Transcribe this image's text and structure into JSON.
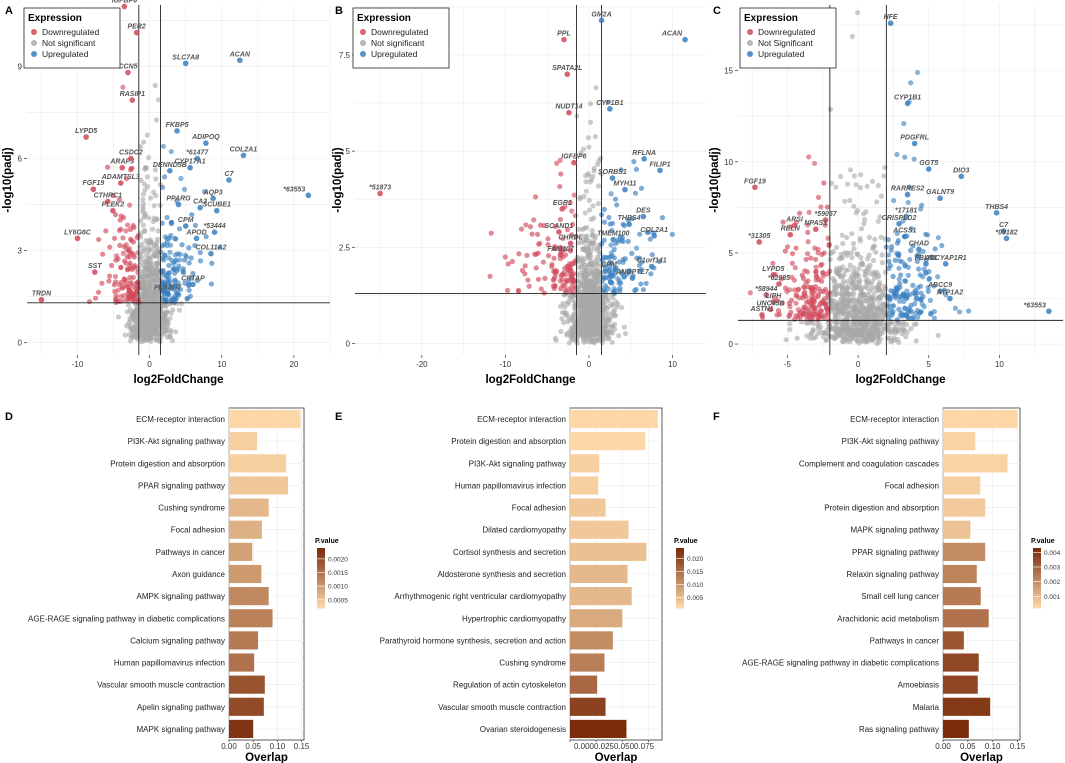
{
  "chart_data": [
    {
      "id": "A",
      "type": "scatter",
      "panel_label": "A",
      "xlabel": "log2FoldChange",
      "ylabel": "-log10(padj)",
      "xlim": [
        -17,
        25
      ],
      "ylim": [
        -0.4,
        11
      ],
      "xticks": [
        -10,
        0,
        10,
        20
      ],
      "yticks": [
        0,
        3,
        6,
        9
      ],
      "fc_cutoff": 1.5,
      "padj_line": 1.3,
      "legend": {
        "title": "Expression",
        "items": [
          "Downregulated",
          "Not significant",
          "Upregulated"
        ],
        "position": "top-left"
      },
      "cloud_seed": 11,
      "genes": [
        {
          "label": "IGFBP6",
          "x": -3.5,
          "y": 10.95,
          "status": "down"
        },
        {
          "label": "PER2",
          "x": -1.8,
          "y": 10.1,
          "status": "down"
        },
        {
          "label": "CCN5",
          "x": -3.0,
          "y": 8.8,
          "status": "down"
        },
        {
          "label": "RASIP1",
          "x": -2.4,
          "y": 7.9,
          "status": "down"
        },
        {
          "label": "LYPD5",
          "x": -8.8,
          "y": 6.7,
          "status": "down"
        },
        {
          "label": "SLC7A8",
          "x": 5.0,
          "y": 9.1,
          "status": "up"
        },
        {
          "label": "ACAN",
          "x": 12.5,
          "y": 9.2,
          "status": "up"
        },
        {
          "label": "FKBP5",
          "x": 3.8,
          "y": 6.9,
          "status": "up"
        },
        {
          "label": "ADIPOQ",
          "x": 7.8,
          "y": 6.5,
          "status": "up"
        },
        {
          "label": "COL2A1",
          "x": 13.0,
          "y": 6.1,
          "status": "up"
        },
        {
          "label": "*61477",
          "x": 6.6,
          "y": 6.0,
          "status": "up"
        },
        {
          "label": "CYP17A1",
          "x": 5.6,
          "y": 5.7,
          "status": "up"
        },
        {
          "label": "C7",
          "x": 11.0,
          "y": 5.3,
          "status": "up"
        },
        {
          "label": "*63553",
          "x": 22.0,
          "y": 4.8,
          "status": "up"
        },
        {
          "label": "AQP3",
          "x": 8.8,
          "y": 4.7,
          "status": "up"
        },
        {
          "label": "CA3",
          "x": 7.0,
          "y": 4.4,
          "status": "up"
        },
        {
          "label": "SCUBE1",
          "x": 9.3,
          "y": 4.3,
          "status": "up"
        },
        {
          "label": "PPARG",
          "x": 4.0,
          "y": 4.5,
          "status": "up"
        },
        {
          "label": "DENND5B",
          "x": 2.8,
          "y": 5.6,
          "status": "up"
        },
        {
          "label": "APOD",
          "x": 6.5,
          "y": 3.4,
          "status": "up"
        },
        {
          "label": "*53444",
          "x": 9.0,
          "y": 3.6,
          "status": "up"
        },
        {
          "label": "COL11A2",
          "x": 8.5,
          "y": 2.9,
          "status": "up"
        },
        {
          "label": "CPM",
          "x": 5.0,
          "y": 3.8,
          "status": "up"
        },
        {
          "label": "PLA2G7",
          "x": 2.5,
          "y": 1.6,
          "status": "up"
        },
        {
          "label": "CRTAP",
          "x": 6.0,
          "y": 1.9,
          "status": "up"
        },
        {
          "label": "ARAP3",
          "x": -3.8,
          "y": 5.7,
          "status": "down"
        },
        {
          "label": "CSDC2",
          "x": -2.6,
          "y": 6.0,
          "status": "down"
        },
        {
          "label": "ADAMTSL3",
          "x": -4.0,
          "y": 5.2,
          "status": "down"
        },
        {
          "label": "FGF19",
          "x": -7.8,
          "y": 5.0,
          "status": "down"
        },
        {
          "label": "CTHRC1",
          "x": -5.8,
          "y": 4.6,
          "status": "down"
        },
        {
          "label": "PLEK2",
          "x": -5.1,
          "y": 4.3,
          "status": "down"
        },
        {
          "label": "LY6G6C",
          "x": -10.0,
          "y": 3.4,
          "status": "down"
        },
        {
          "label": "SST",
          "x": -7.6,
          "y": 2.3,
          "status": "down"
        },
        {
          "label": "TRDN",
          "x": -15.0,
          "y": 1.4,
          "status": "down"
        }
      ]
    },
    {
      "id": "B",
      "type": "scatter",
      "panel_label": "B",
      "xlabel": "log2FoldChange",
      "ylabel": "-log10(padj)",
      "xlim": [
        -28,
        14
      ],
      "ylim": [
        -0.3,
        8.8
      ],
      "xticks": [
        -20,
        -10,
        0,
        10
      ],
      "yticks": [
        0.0,
        2.5,
        5.0,
        7.5
      ],
      "fc_cutoff": 1.5,
      "padj_line": 1.3,
      "legend": {
        "title": "Expression",
        "items": [
          "Downregulated",
          "Not significant",
          "Upregulated"
        ],
        "position": "top-left"
      },
      "cloud_seed": 23,
      "genes": [
        {
          "label": "GM2A",
          "x": 1.5,
          "y": 8.4,
          "status": "up"
        },
        {
          "label": "ACAN",
          "x": 11.5,
          "y": 7.9,
          "status": "up"
        },
        {
          "label": "PPL",
          "x": -3.0,
          "y": 7.9,
          "status": "down"
        },
        {
          "label": "SPATA2L",
          "x": -2.6,
          "y": 7.0,
          "status": "down"
        },
        {
          "label": "NUDT14",
          "x": -2.4,
          "y": 6.0,
          "status": "down"
        },
        {
          "label": "CYP1B1",
          "x": 2.5,
          "y": 6.1,
          "status": "up"
        },
        {
          "label": "RFLNA",
          "x": 6.6,
          "y": 4.8,
          "status": "up"
        },
        {
          "label": "FILIP1",
          "x": 8.5,
          "y": 4.5,
          "status": "up"
        },
        {
          "label": "IGFBP6",
          "x": -1.8,
          "y": 4.7,
          "status": "down"
        },
        {
          "label": "SORBS1",
          "x": 2.8,
          "y": 4.3,
          "status": "up"
        },
        {
          "label": "MYH11",
          "x": 4.3,
          "y": 4.0,
          "status": "up"
        },
        {
          "label": "*51873",
          "x": -25.0,
          "y": 3.9,
          "status": "down"
        },
        {
          "label": "EGR1",
          "x": -3.2,
          "y": 3.5,
          "status": "down"
        },
        {
          "label": "DES",
          "x": 6.5,
          "y": 3.3,
          "status": "up"
        },
        {
          "label": "COL2A1",
          "x": 7.8,
          "y": 2.8,
          "status": "up"
        },
        {
          "label": "THBS4",
          "x": 4.8,
          "y": 3.1,
          "status": "up"
        },
        {
          "label": "C1orf141",
          "x": 7.5,
          "y": 2.0,
          "status": "up"
        },
        {
          "label": "ANGPTL7",
          "x": 5.2,
          "y": 1.7,
          "status": "up"
        },
        {
          "label": "SCAND1",
          "x": -3.6,
          "y": 2.9,
          "status": "down"
        },
        {
          "label": "FAM107",
          "x": -3.4,
          "y": 2.3,
          "status": "down"
        },
        {
          "label": "CHRDL",
          "x": -2.2,
          "y": 2.6,
          "status": "down"
        },
        {
          "label": "CPM",
          "x": 2.4,
          "y": 1.9,
          "status": "up"
        },
        {
          "label": "TMEM100",
          "x": 2.9,
          "y": 2.7,
          "status": "up"
        }
      ]
    },
    {
      "id": "C",
      "type": "scatter",
      "panel_label": "C",
      "xlabel": "log2FoldChange",
      "ylabel": "-log10(padj)",
      "xlim": [
        -8.5,
        14.5
      ],
      "ylim": [
        -0.6,
        18.6
      ],
      "xticks": [
        -5,
        0,
        5,
        10
      ],
      "yticks": [
        0,
        5,
        10,
        15
      ],
      "fc_cutoff": 2,
      "padj_line": 1.3,
      "legend": {
        "title": "Expression",
        "items": [
          "Downregulated",
          "Not Significant",
          "Upregulated"
        ],
        "position": "top-left"
      },
      "cloud_seed": 37,
      "genes": [
        {
          "label": "HFE",
          "x": 2.3,
          "y": 17.6,
          "status": "up"
        },
        {
          "label": "CYP1B1",
          "x": 3.5,
          "y": 13.2,
          "status": "up"
        },
        {
          "label": "PDGFRL",
          "x": 4.0,
          "y": 11.0,
          "status": "up"
        },
        {
          "label": "GGT5",
          "x": 5.0,
          "y": 9.6,
          "status": "up"
        },
        {
          "label": "DIO3",
          "x": 7.3,
          "y": 9.2,
          "status": "up"
        },
        {
          "label": "FGF19",
          "x": -7.3,
          "y": 8.6,
          "status": "down"
        },
        {
          "label": "RARRES2",
          "x": 3.5,
          "y": 8.2,
          "status": "up"
        },
        {
          "label": "GALNT9",
          "x": 5.8,
          "y": 8.0,
          "status": "up"
        },
        {
          "label": "THBS4",
          "x": 9.8,
          "y": 7.2,
          "status": "up"
        },
        {
          "label": "*17181",
          "x": 3.4,
          "y": 7.0,
          "status": "up"
        },
        {
          "label": "CRISPLD2",
          "x": 2.9,
          "y": 6.6,
          "status": "up"
        },
        {
          "label": "*59057",
          "x": -2.3,
          "y": 6.8,
          "status": "down"
        },
        {
          "label": "ARSI",
          "x": -4.5,
          "y": 6.5,
          "status": "down"
        },
        {
          "label": "NPAS1",
          "x": -3.0,
          "y": 6.3,
          "status": "down"
        },
        {
          "label": "C7",
          "x": 10.3,
          "y": 6.2,
          "status": "up"
        },
        {
          "label": "*09182",
          "x": 10.5,
          "y": 5.8,
          "status": "up"
        },
        {
          "label": "RELN",
          "x": -4.8,
          "y": 6.0,
          "status": "down"
        },
        {
          "label": "*31305",
          "x": -7.0,
          "y": 5.6,
          "status": "down"
        },
        {
          "label": "ACSS1",
          "x": 3.3,
          "y": 5.9,
          "status": "up"
        },
        {
          "label": "CHAD",
          "x": 4.3,
          "y": 5.2,
          "status": "up"
        },
        {
          "label": "ADCYAP1R1",
          "x": 6.2,
          "y": 4.4,
          "status": "up"
        },
        {
          "label": "LYPD5",
          "x": -6.0,
          "y": 3.8,
          "status": "down"
        },
        {
          "label": "*62085",
          "x": -5.6,
          "y": 3.3,
          "status": "down"
        },
        {
          "label": "ABCC9",
          "x": 5.8,
          "y": 2.9,
          "status": "up"
        },
        {
          "label": "ATP1A2",
          "x": 6.5,
          "y": 2.5,
          "status": "up"
        },
        {
          "label": "*58944",
          "x": -6.5,
          "y": 2.7,
          "status": "down"
        },
        {
          "label": "LIPH",
          "x": -6.0,
          "y": 2.3,
          "status": "down"
        },
        {
          "label": "UNC45B",
          "x": -6.2,
          "y": 1.9,
          "status": "down"
        },
        {
          "label": "ASTN1",
          "x": -6.8,
          "y": 1.6,
          "status": "down"
        },
        {
          "label": "*63553",
          "x": 13.5,
          "y": 1.8,
          "status": "up"
        },
        {
          "label": "FBLN1",
          "x": 4.8,
          "y": 4.4,
          "status": "up"
        }
      ]
    },
    {
      "id": "D",
      "type": "bar",
      "panel_label": "D",
      "orientation": "horizontal",
      "xlabel": "Overlap",
      "xlim": [
        0,
        0.155
      ],
      "xticks": [
        0.0,
        0.05,
        0.1,
        0.15
      ],
      "xtick_labels": [
        "0.00",
        "0.05",
        "0.10",
        "0.15"
      ],
      "legend": {
        "title": "P.value",
        "ticks": [
          "0.0020",
          "0.0015",
          "0.0010",
          "0.0005"
        ],
        "range": [
          0.0002,
          0.0024
        ]
      },
      "categories": [
        "ECM-receptor interaction",
        "PI3K-Akt signaling pathway",
        "Protein digestion and absorption",
        "PPAR signaling pathway",
        "Cushing syndrome",
        "Focal adhesion",
        "Pathways in cancer",
        "Axon guidance",
        "AMPK signaling pathway",
        "AGE-RAGE signaling pathway in diabetic complications",
        "Calcium signaling pathway",
        "Human papillomavirus infection",
        "Vascular smooth muscle contraction",
        "Apelin signaling pathway",
        "MAPK signaling pathway"
      ],
      "values": [
        0.148,
        0.058,
        0.118,
        0.122,
        0.082,
        0.068,
        0.048,
        0.067,
        0.082,
        0.09,
        0.06,
        0.052,
        0.074,
        0.072,
        0.05
      ],
      "pvalues": [
        0.0002,
        0.0003,
        0.0003,
        0.0004,
        0.0006,
        0.0007,
        0.0009,
        0.001,
        0.0012,
        0.0013,
        0.0014,
        0.0015,
        0.0019,
        0.002,
        0.0023
      ]
    },
    {
      "id": "E",
      "type": "bar",
      "panel_label": "E",
      "orientation": "horizontal",
      "xlabel": "Overlap",
      "xlim": [
        0,
        0.088
      ],
      "xticks": [
        0.0,
        0.025,
        0.05,
        0.075
      ],
      "xtick_labels": [
        "0.000",
        "0.025",
        "0.050",
        "0.075"
      ],
      "xtick_joined_label": "0.0000.0250.0500.075",
      "legend": {
        "title": "P.value",
        "ticks": [
          "0.020",
          "0.015",
          "0.010",
          "0.005"
        ],
        "range": [
          0.001,
          0.024
        ]
      },
      "categories": [
        "ECM-receptor interaction",
        "Protein digestion and absorption",
        "PI3K-Akt signaling pathway",
        "Human papillomavirus infection",
        "Focal adhesion",
        "Dilated cardiomyopathy",
        "Cortisol synthesis and secretion",
        "Aldosterone synthesis and secretion",
        "Arrhythmogenic right ventricular cardiomyopathy",
        "Hypertrophic cardiomyopathy",
        "Parathyroid hormone synthesis, secretion and action",
        "Cushing syndrome",
        "Regulation of actin cytoskeleton",
        "Vascular smooth muscle contraction",
        "Ovarian steroidogenesis"
      ],
      "values": [
        0.084,
        0.072,
        0.028,
        0.027,
        0.034,
        0.056,
        0.073,
        0.055,
        0.059,
        0.05,
        0.041,
        0.033,
        0.026,
        0.034,
        0.054
      ],
      "pvalues": [
        0.001,
        0.001,
        0.002,
        0.002,
        0.003,
        0.003,
        0.004,
        0.005,
        0.005,
        0.007,
        0.011,
        0.013,
        0.016,
        0.021,
        0.024
      ]
    },
    {
      "id": "F",
      "type": "bar",
      "panel_label": "F",
      "orientation": "horizontal",
      "xlabel": "Overlap",
      "xlim": [
        0,
        0.155
      ],
      "xticks": [
        0.0,
        0.05,
        0.1,
        0.15
      ],
      "xtick_labels": [
        "0.00",
        "0.05",
        "0.10",
        "0.15"
      ],
      "legend": {
        "title": "P.value",
        "ticks": [
          "0.004",
          "0.003",
          "0.002",
          "0.001"
        ],
        "range": [
          0.0002,
          0.0043
        ]
      },
      "categories": [
        "ECM-receptor interaction",
        "PI3K-Akt signaling pathway",
        "Complement and coagulation cascades",
        "Focal adhesion",
        "Protein digestion and absorption",
        "MAPK signaling pathway",
        "PPAR signaling pathway",
        "Relaxin signaling pathway",
        "Small cell lung cancer",
        "Arachidonic acid metabolism",
        "Pathways in cancer",
        "AGE-RAGE signaling pathway in diabetic complications",
        "Amoebiasis",
        "Malaria",
        "Ras signaling pathway"
      ],
      "values": [
        0.15,
        0.065,
        0.13,
        0.075,
        0.085,
        0.055,
        0.085,
        0.068,
        0.076,
        0.092,
        0.042,
        0.072,
        0.07,
        0.095,
        0.052
      ],
      "pvalues": [
        0.0002,
        0.0003,
        0.0003,
        0.0004,
        0.0005,
        0.0007,
        0.002,
        0.0022,
        0.0024,
        0.0026,
        0.0033,
        0.0036,
        0.0037,
        0.004,
        0.0043
      ]
    }
  ],
  "colors": {
    "down": "#d1495b",
    "ns": "#a9a9a9",
    "up": "#3a7fc0",
    "threshold": "#222222",
    "grid": "#ebebeb",
    "pv_low": "#fcd7a8",
    "pv_high": "#7a2c0c"
  }
}
